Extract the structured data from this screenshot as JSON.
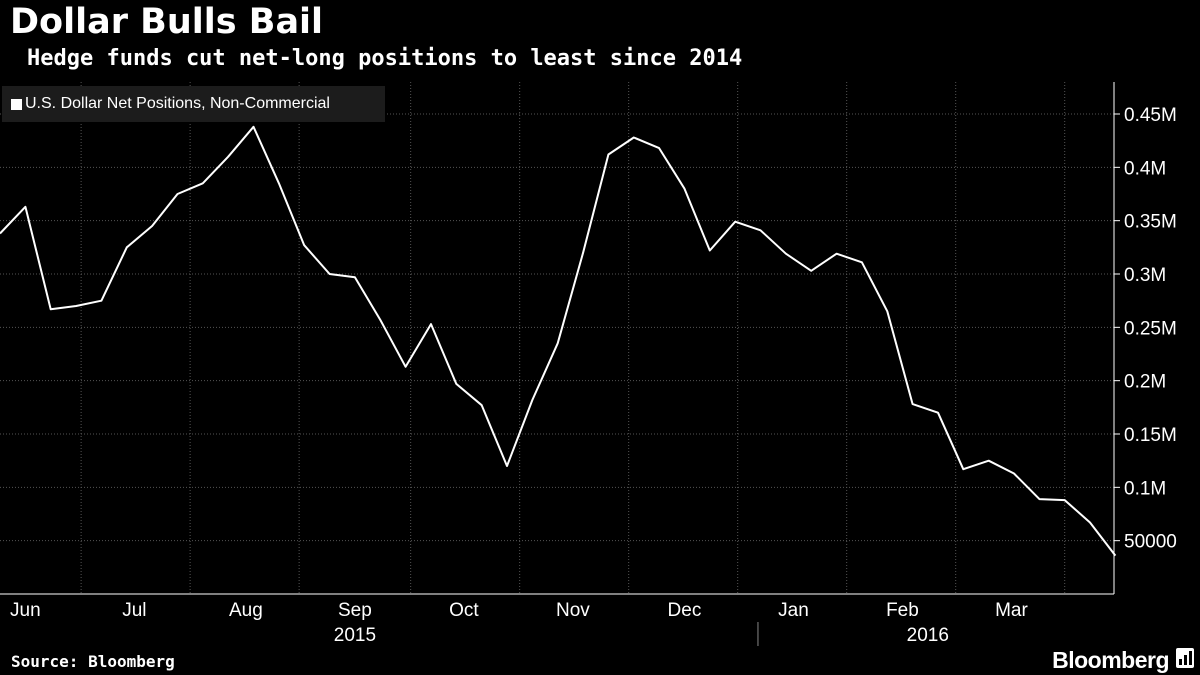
{
  "header": {
    "title": "Dollar Bulls Bail",
    "subtitle": "Hedge funds cut net-long positions to least since 2014"
  },
  "footer": {
    "source": "Source: Bloomberg",
    "brand": "Bloomberg"
  },
  "colors": {
    "background": "#000000",
    "line": "#ffffff",
    "grid": "#555555",
    "legend_bg": "#1c1c1c"
  },
  "chart_data": {
    "type": "line",
    "legend_position": "top-left",
    "grid": true,
    "y_axis_side": "right",
    "ylim": [
      0,
      0.48
    ],
    "y_ticks": [
      {
        "value": 0.05,
        "label": "50000"
      },
      {
        "value": 0.1,
        "label": "0.1M"
      },
      {
        "value": 0.15,
        "label": "0.15M"
      },
      {
        "value": 0.2,
        "label": "0.2M"
      },
      {
        "value": 0.25,
        "label": "0.25M"
      },
      {
        "value": 0.3,
        "label": "0.3M"
      },
      {
        "value": 0.35,
        "label": "0.35M"
      },
      {
        "value": 0.4,
        "label": "0.4M"
      },
      {
        "value": 0.45,
        "label": "0.45M"
      }
    ],
    "x_ticks": [
      {
        "label": "Jun",
        "index": 1
      },
      {
        "label": "Jul",
        "index": 5.3
      },
      {
        "label": "Aug",
        "index": 9.7
      },
      {
        "label": "Sep",
        "index": 14.0
      },
      {
        "label": "Oct",
        "index": 18.3
      },
      {
        "label": "Nov",
        "index": 22.6
      },
      {
        "label": "Dec",
        "index": 27.0
      },
      {
        "label": "Jan",
        "index": 31.3
      },
      {
        "label": "Feb",
        "index": 35.6
      },
      {
        "label": "Mar",
        "index": 39.9
      }
    ],
    "year_labels": [
      {
        "label": "2015",
        "index": 14.0
      },
      {
        "label": "2016",
        "index": 36.6
      }
    ],
    "month_boundaries": [
      3.2,
      7.5,
      11.8,
      16.2,
      20.5,
      24.8,
      29.1,
      33.4,
      37.7,
      42.0
    ],
    "year_boundary_index": 29.9,
    "series": [
      {
        "name": "U.S. Dollar Net Positions, Non-Commercial",
        "unit": "M",
        "values": [
          0.338,
          0.363,
          0.267,
          0.27,
          0.275,
          0.325,
          0.345,
          0.375,
          0.385,
          0.41,
          0.438,
          0.385,
          0.327,
          0.3,
          0.297,
          0.257,
          0.213,
          0.253,
          0.197,
          0.177,
          0.12,
          0.182,
          0.235,
          0.32,
          0.412,
          0.428,
          0.418,
          0.38,
          0.322,
          0.349,
          0.341,
          0.319,
          0.303,
          0.319,
          0.311,
          0.265,
          0.178,
          0.17,
          0.117,
          0.125,
          0.113,
          0.089,
          0.088,
          0.067,
          0.036
        ]
      }
    ]
  }
}
